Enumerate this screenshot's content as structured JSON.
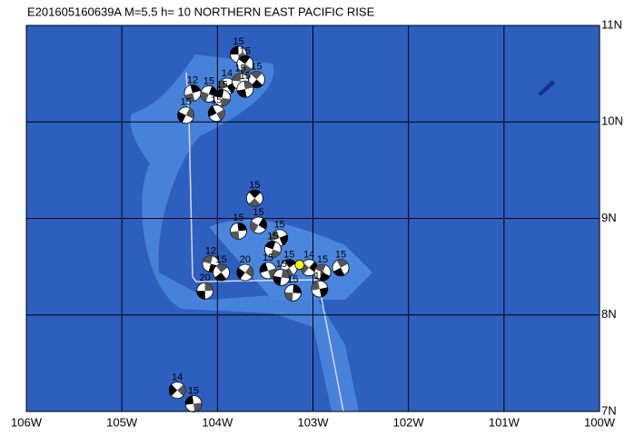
{
  "title": "E201605160639A M=5.5 h= 10 NORTHERN EAST PACIFIC RISE",
  "map": {
    "lon_range": [
      -106,
      -100
    ],
    "lat_range": [
      7,
      11
    ],
    "lon_ticks": [
      {
        "value": -106,
        "label": "106W"
      },
      {
        "value": -105,
        "label": "105W"
      },
      {
        "value": -104,
        "label": "104W"
      },
      {
        "value": -103,
        "label": "103W"
      },
      {
        "value": -102,
        "label": "102W"
      },
      {
        "value": -101,
        "label": "101W"
      },
      {
        "value": -100,
        "label": "100W"
      }
    ],
    "lat_ticks": [
      {
        "value": 11,
        "label": "11N"
      },
      {
        "value": 10,
        "label": "10N"
      },
      {
        "value": 9,
        "label": "9N"
      },
      {
        "value": 8,
        "label": "8N"
      },
      {
        "value": 7,
        "label": "7N"
      }
    ],
    "epicenter": {
      "lon": -103.14,
      "lat": 8.52
    },
    "events": [
      {
        "lon": -103.78,
        "lat": 10.7,
        "depth": 15
      },
      {
        "lon": -103.71,
        "lat": 10.6,
        "depth": 15
      },
      {
        "lon": -104.26,
        "lat": 10.3,
        "depth": 12
      },
      {
        "lon": -104.09,
        "lat": 10.29,
        "depth": 15
      },
      {
        "lon": -103.9,
        "lat": 10.37,
        "depth": 14
      },
      {
        "lon": -103.76,
        "lat": 10.42,
        "depth": 15
      },
      {
        "lon": -103.59,
        "lat": 10.44,
        "depth": 15
      },
      {
        "lon": -103.71,
        "lat": 10.34,
        "depth": 15
      },
      {
        "lon": -104.33,
        "lat": 10.07,
        "depth": 15
      },
      {
        "lon": -104.01,
        "lat": 10.09,
        "depth": 15
      },
      {
        "lon": -103.95,
        "lat": 10.25,
        "depth": 15
      },
      {
        "lon": -103.61,
        "lat": 9.21,
        "depth": 15
      },
      {
        "lon": -103.78,
        "lat": 8.87,
        "depth": 15
      },
      {
        "lon": -103.57,
        "lat": 8.93,
        "depth": 15
      },
      {
        "lon": -103.35,
        "lat": 8.8,
        "depth": 15
      },
      {
        "lon": -104.07,
        "lat": 8.53,
        "depth": 12
      },
      {
        "lon": -103.96,
        "lat": 8.44,
        "depth": 15
      },
      {
        "lon": -104.13,
        "lat": 8.25,
        "depth": 20
      },
      {
        "lon": -103.71,
        "lat": 8.44,
        "depth": 20
      },
      {
        "lon": -103.47,
        "lat": 8.46,
        "depth": 15
      },
      {
        "lon": -103.42,
        "lat": 8.68,
        "depth": 15
      },
      {
        "lon": -103.25,
        "lat": 8.49,
        "depth": 15
      },
      {
        "lon": -103.21,
        "lat": 8.23,
        "depth": 15
      },
      {
        "lon": -103.04,
        "lat": 8.49,
        "depth": 14
      },
      {
        "lon": -102.93,
        "lat": 8.27,
        "depth": 15
      },
      {
        "lon": -102.9,
        "lat": 8.44,
        "depth": 15
      },
      {
        "lon": -102.71,
        "lat": 8.49,
        "depth": 15
      },
      {
        "lon": -103.33,
        "lat": 8.39,
        "depth": 15
      },
      {
        "lon": -104.42,
        "lat": 7.22,
        "depth": 14
      },
      {
        "lon": -104.25,
        "lat": 7.08,
        "depth": 15
      }
    ]
  }
}
